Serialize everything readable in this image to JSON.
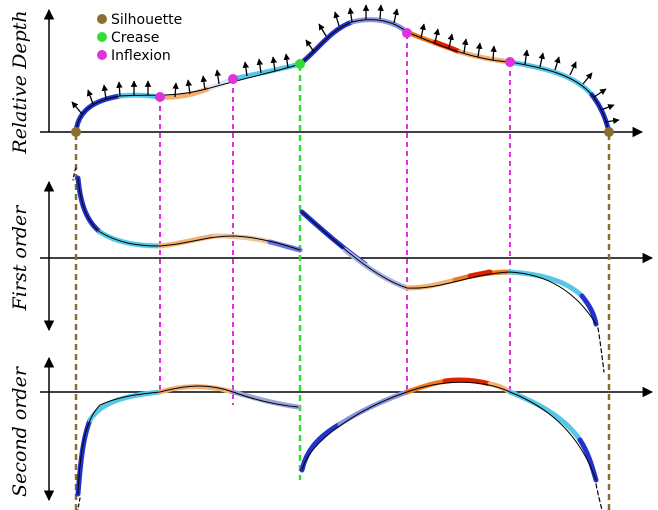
{
  "legend": {
    "silhouette": {
      "label": "Silhouette",
      "color": "#8b6d2e"
    },
    "crease": {
      "label": "Crease",
      "color": "#33dd33"
    },
    "inflexion": {
      "label": "Inflexion",
      "color": "#dd33dd"
    }
  },
  "panels": {
    "depth": {
      "label": "Relative Depth"
    },
    "first": {
      "label": "First order"
    },
    "second": {
      "label": "Second order"
    }
  },
  "colors": {
    "deep_blue": "#2233cc",
    "light_blue": "#55c8e8",
    "orange": "#f09030",
    "red": "#dd2200",
    "pale": "#dde6f5",
    "periwinkle": "#6677dd"
  }
}
